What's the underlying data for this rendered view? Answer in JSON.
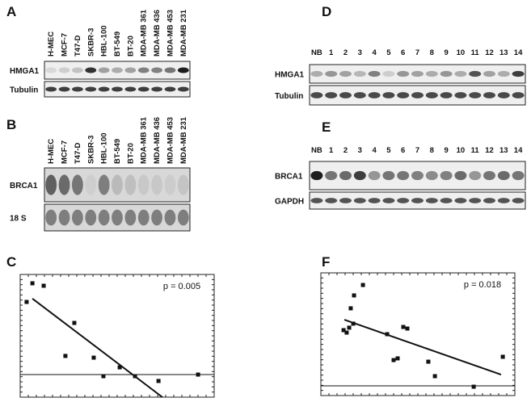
{
  "panels": {
    "A": {
      "label": "A",
      "lanes": [
        "H-MEC",
        "MCF-7",
        "T47-D",
        "SKBR-3",
        "HBL-100",
        "BT-549",
        "BT-20",
        "MDA-MB 361",
        "MDA-MB 436",
        "MDA-MB 453",
        "MDA-MB 231"
      ],
      "rows": [
        "HMGA1",
        "Tubulin"
      ]
    },
    "B": {
      "label": "B",
      "lanes": [
        "H-MEC",
        "MCF-7",
        "T47-D",
        "SKBR-3",
        "HBL-100",
        "BT-549",
        "BT-20",
        "MDA-MB 361",
        "MDA-MB 436",
        "MDA-MB 453",
        "MDA-MB 231"
      ],
      "rows": [
        "BRCA1",
        "18 S"
      ]
    },
    "C": {
      "label": "C",
      "annotation": "p = 0.005",
      "xlim": [
        0,
        100
      ],
      "ylim": [
        0,
        100
      ],
      "points": {
        "x": [
          3.3,
          6.3,
          12.1,
          27.9,
          23.3,
          37.9,
          42.9,
          51.3,
          59.2,
          71.3,
          91.7
        ],
        "y": [
          77.6,
          92.8,
          90.8,
          60.5,
          33.6,
          32.2,
          17.1,
          24.3,
          17.1,
          13.2,
          18.4
        ]
      },
      "fit": {
        "x": [
          6.3,
          73.3
        ],
        "y": [
          80.3,
          0
        ]
      },
      "reference_line": 18.4
    },
    "D": {
      "label": "D",
      "lanes": [
        "NB",
        "1",
        "2",
        "3",
        "4",
        "5",
        "6",
        "7",
        "8",
        "9",
        "10",
        "11",
        "12",
        "13",
        "14"
      ],
      "rows": [
        "HMGA1",
        "Tubulin"
      ]
    },
    "E": {
      "label": "E",
      "lanes": [
        "NB",
        "1",
        "2",
        "3",
        "4",
        "5",
        "6",
        "7",
        "8",
        "9",
        "10",
        "11",
        "12",
        "13",
        "14"
      ],
      "rows": [
        "BRCA1",
        "GAPDH"
      ]
    },
    "F": {
      "label": "F",
      "annotation": "p = 0.018",
      "xlim": [
        0,
        100
      ],
      "ylim": [
        0,
        100
      ],
      "points": {
        "x": [
          11.7,
          13.3,
          14.6,
          16.7,
          15.4,
          17.1,
          21.7,
          34.2,
          37.5,
          39.6,
          42.5,
          44.6,
          55.4,
          58.8,
          78.8,
          93.8
        ],
        "y": [
          53.3,
          51.3,
          55.3,
          58.6,
          71.1,
          81.6,
          90.1,
          50.0,
          28.9,
          30.3,
          55.9,
          54.6,
          27.6,
          15.8,
          7.2,
          31.6
        ]
      },
      "fit": {
        "x": [
          12.1,
          92.9
        ],
        "y": [
          61.8,
          17.1
        ]
      },
      "reference_line": 7.9
    }
  }
}
